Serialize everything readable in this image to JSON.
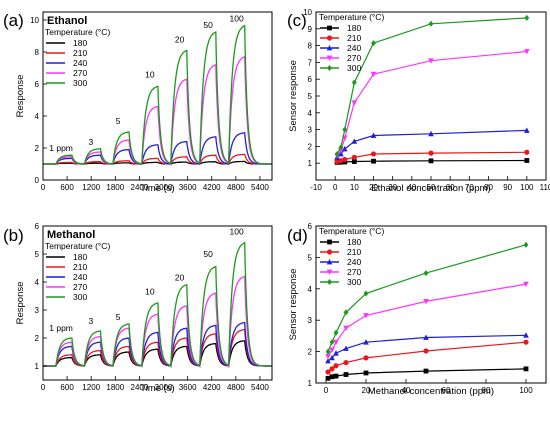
{
  "colors": [
    "#000000",
    "#e8191b",
    "#1f1fd8",
    "#ff33ff",
    "#1a9a1a"
  ],
  "chart_data": [
    {
      "panel_label": "(a)",
      "type": "line",
      "title": "Ethanol",
      "xlabel": "Time (s)",
      "ylabel": "Response",
      "xlim": [
        0,
        5700
      ],
      "ylim": [
        0,
        10.5
      ],
      "xticks": [
        0,
        600,
        1200,
        1800,
        2400,
        3000,
        3600,
        4200,
        4800,
        5400
      ],
      "yticks": [
        0,
        2,
        4,
        6,
        8,
        10
      ],
      "legend_title": "Temperature (°C)",
      "legend_position": "top-left",
      "annotations": [
        {
          "text": "1 ppm",
          "x": 450,
          "y": 1.8
        },
        {
          "text": "3",
          "x": 1190,
          "y": 2.2
        },
        {
          "text": "5",
          "x": 1870,
          "y": 3.5
        },
        {
          "text": "10",
          "x": 2660,
          "y": 6.4
        },
        {
          "text": "20",
          "x": 3400,
          "y": 8.6
        },
        {
          "text": "50",
          "x": 4110,
          "y": 9.5
        },
        {
          "text": "100",
          "x": 4820,
          "y": 9.9
        }
      ],
      "pulses": [
        {
          "on": 320,
          "off": 720
        },
        {
          "on": 1030,
          "off": 1430
        },
        {
          "on": 1740,
          "off": 2140
        },
        {
          "on": 2460,
          "off": 2860
        },
        {
          "on": 3180,
          "off": 3580
        },
        {
          "on": 3900,
          "off": 4300
        },
        {
          "on": 4620,
          "off": 5020
        }
      ],
      "series": [
        {
          "name": "180",
          "baseline": 1.0,
          "peaks": [
            1.05,
            1.05,
            1.07,
            1.1,
            1.12,
            1.14,
            1.16
          ]
        },
        {
          "name": "210",
          "baseline": 1.0,
          "peaks": [
            1.1,
            1.15,
            1.2,
            1.35,
            1.45,
            1.55,
            1.6
          ]
        },
        {
          "name": "240",
          "baseline": 1.0,
          "peaks": [
            1.35,
            1.55,
            1.9,
            2.2,
            2.4,
            2.7,
            2.95
          ]
        },
        {
          "name": "270",
          "baseline": 1.0,
          "peaks": [
            1.45,
            1.75,
            2.5,
            4.6,
            6.3,
            7.2,
            7.7
          ]
        },
        {
          "name": "300",
          "baseline": 1.0,
          "peaks": [
            1.55,
            1.95,
            3.0,
            5.85,
            8.1,
            9.25,
            9.65
          ]
        }
      ]
    },
    {
      "panel_label": "(b)",
      "type": "line",
      "title": "Methanol",
      "xlabel": "Time (s)",
      "ylabel": "Response",
      "xlim": [
        0,
        5700
      ],
      "ylim": [
        0.5,
        6
      ],
      "xticks": [
        0,
        600,
        1200,
        1800,
        2400,
        3000,
        3600,
        4200,
        4800,
        5400
      ],
      "yticks": [
        1,
        2,
        3,
        4,
        5,
        6
      ],
      "legend_title": "Temperature (°C)",
      "legend_position": "top-left",
      "annotations": [
        {
          "text": "1 ppm",
          "x": 450,
          "y": 2.25
        },
        {
          "text": "3",
          "x": 1190,
          "y": 2.5
        },
        {
          "text": "5",
          "x": 1870,
          "y": 2.65
        },
        {
          "text": "10",
          "x": 2660,
          "y": 3.55
        },
        {
          "text": "20",
          "x": 3400,
          "y": 4.05
        },
        {
          "text": "50",
          "x": 4110,
          "y": 4.9
        },
        {
          "text": "100",
          "x": 4820,
          "y": 5.7
        }
      ],
      "pulses": [
        {
          "on": 320,
          "off": 720
        },
        {
          "on": 1030,
          "off": 1430
        },
        {
          "on": 1740,
          "off": 2140
        },
        {
          "on": 2460,
          "off": 2860
        },
        {
          "on": 3180,
          "off": 3580
        },
        {
          "on": 3900,
          "off": 4300
        },
        {
          "on": 4620,
          "off": 5020
        }
      ],
      "series": [
        {
          "name": "180",
          "baseline": 1.0,
          "peaks": [
            1.3,
            1.4,
            1.5,
            1.6,
            1.7,
            1.8,
            1.9
          ]
        },
        {
          "name": "210",
          "baseline": 1.0,
          "peaks": [
            1.4,
            1.55,
            1.7,
            1.85,
            2.0,
            2.15,
            2.3
          ]
        },
        {
          "name": "240",
          "baseline": 1.0,
          "peaks": [
            1.7,
            1.85,
            2.0,
            2.2,
            2.35,
            2.45,
            2.55
          ]
        },
        {
          "name": "270",
          "baseline": 1.0,
          "peaks": [
            1.85,
            2.05,
            2.35,
            2.85,
            3.15,
            3.6,
            4.2
          ]
        },
        {
          "name": "300",
          "baseline": 1.0,
          "peaks": [
            2.0,
            2.25,
            2.5,
            3.25,
            3.9,
            4.55,
            5.4
          ]
        }
      ]
    },
    {
      "panel_label": "(c)",
      "type": "line",
      "title": "",
      "xlabel": "Ethanol concentration (ppm)",
      "ylabel": "Sensor response",
      "xlim": [
        -10,
        110
      ],
      "ylim": [
        0,
        10
      ],
      "xticks": [
        -10,
        0,
        10,
        20,
        30,
        40,
        50,
        60,
        70,
        80,
        90,
        100,
        110
      ],
      "yticks": [
        1,
        2,
        3,
        4,
        5,
        6,
        7,
        8,
        9,
        10
      ],
      "legend_title": "Temperature (°C)",
      "legend_position": "top-left",
      "x": [
        1,
        3,
        5,
        10,
        20,
        50,
        100
      ],
      "series": [
        {
          "name": "180",
          "marker": "square",
          "values": [
            1.05,
            1.06,
            1.07,
            1.1,
            1.12,
            1.14,
            1.16
          ]
        },
        {
          "name": "210",
          "marker": "circle",
          "values": [
            1.1,
            1.15,
            1.22,
            1.35,
            1.55,
            1.6,
            1.65
          ]
        },
        {
          "name": "240",
          "marker": "triangle",
          "values": [
            1.35,
            1.55,
            1.85,
            2.3,
            2.65,
            2.75,
            2.95
          ]
        },
        {
          "name": "270",
          "marker": "triangle-down",
          "values": [
            1.45,
            1.75,
            2.5,
            4.6,
            6.3,
            7.1,
            7.65
          ]
        },
        {
          "name": "300",
          "marker": "diamond",
          "values": [
            1.55,
            1.95,
            3.0,
            5.8,
            8.15,
            9.3,
            9.65
          ]
        }
      ]
    },
    {
      "panel_label": "(d)",
      "type": "line",
      "title": "",
      "xlabel": "Methanol concentration (ppm)",
      "ylabel": "Sensor response",
      "xlim": [
        -5,
        110
      ],
      "ylim": [
        1,
        6
      ],
      "xticks": [
        0,
        20,
        40,
        60,
        80,
        100
      ],
      "yticks": [
        1,
        2,
        3,
        4,
        5,
        6
      ],
      "legend_title": "Temperature (°C)",
      "legend_position": "top-left",
      "x": [
        1,
        3,
        5,
        10,
        20,
        50,
        100
      ],
      "series": [
        {
          "name": "180",
          "marker": "square",
          "values": [
            1.15,
            1.2,
            1.22,
            1.27,
            1.32,
            1.38,
            1.45
          ]
        },
        {
          "name": "210",
          "marker": "circle",
          "values": [
            1.35,
            1.45,
            1.55,
            1.65,
            1.8,
            2.02,
            2.3
          ]
        },
        {
          "name": "240",
          "marker": "triangle",
          "values": [
            1.7,
            1.8,
            1.95,
            2.1,
            2.3,
            2.45,
            2.52
          ]
        },
        {
          "name": "270",
          "marker": "triangle-down",
          "values": [
            1.85,
            2.05,
            2.3,
            2.75,
            3.15,
            3.6,
            4.15
          ]
        },
        {
          "name": "300",
          "marker": "diamond",
          "values": [
            2.0,
            2.3,
            2.6,
            3.25,
            3.85,
            4.5,
            5.4
          ]
        }
      ]
    }
  ]
}
